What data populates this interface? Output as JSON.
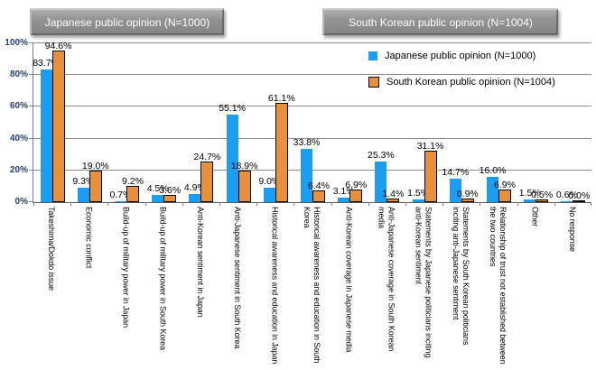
{
  "header": {
    "left_button": "Japanese public opinion (N=1000)",
    "right_button": "South Korean public opinion  (N=1004)"
  },
  "legend": {
    "items": [
      {
        "label": "Japanese public opinion (N=1000)",
        "color": "#1B9DF2",
        "border": "transparent"
      },
      {
        "label": "South Korean public opinion  (N=1004)",
        "color": "#E8913D",
        "border": "#000000"
      }
    ]
  },
  "colors": {
    "japanese_series": "#1B9DF2",
    "south_korean_series": "#E8913D",
    "south_korean_bar_border": "#000000",
    "gridline": "#8c8c8c",
    "axis_line": "#7f7f7f",
    "y_axis_text": "#24416B",
    "data_label": "#000000",
    "header_button_text": "#ffffff"
  },
  "chart_data": {
    "type": "bar",
    "title": "",
    "xlabel": "",
    "ylabel": "",
    "ylim": [
      0,
      100
    ],
    "grid": true,
    "legend_position": "top-right",
    "y_ticks": [
      "0%",
      "20%",
      "40%",
      "60%",
      "80%",
      "100%"
    ],
    "categories": [
      "Takeshima/Dokdo issue",
      "Economic conflict",
      "Build-up of military power in Japan",
      "Build-up of military power in South Korea",
      "Anti-Korean sentiment in Japan",
      "Anti-Japanese sentiment in South Korea",
      "Historical awareness and education in Japan",
      "Historical awareness and education in South Korea",
      "Anti-Korean coverage in Japanese media",
      "Anti-Japanese coverage in South Korean media",
      "Statements by Japanese politicians inciting anti-Korean sentiment",
      "Statements by South Korean politicians inciting anti-Japanese sentiment",
      "Relationship of trust not established between the two countries",
      "Other",
      "No response"
    ],
    "series": [
      {
        "name": "Japanese public opinion (N=1000)",
        "color": "#1B9DF2",
        "values": [
          83.7,
          9.3,
          0.7,
          4.5,
          4.9,
          55.1,
          9.0,
          33.8,
          3.1,
          25.3,
          1.5,
          14.7,
          16.0,
          1.5,
          0.6
        ]
      },
      {
        "name": "South Korean public opinion (N=1004)",
        "color": "#E8913D",
        "values": [
          94.6,
          19.0,
          9.2,
          3.6,
          24.7,
          18.9,
          61.1,
          6.4,
          6.9,
          1.4,
          31.1,
          0.9,
          6.9,
          0.5,
          0.0
        ]
      }
    ]
  }
}
